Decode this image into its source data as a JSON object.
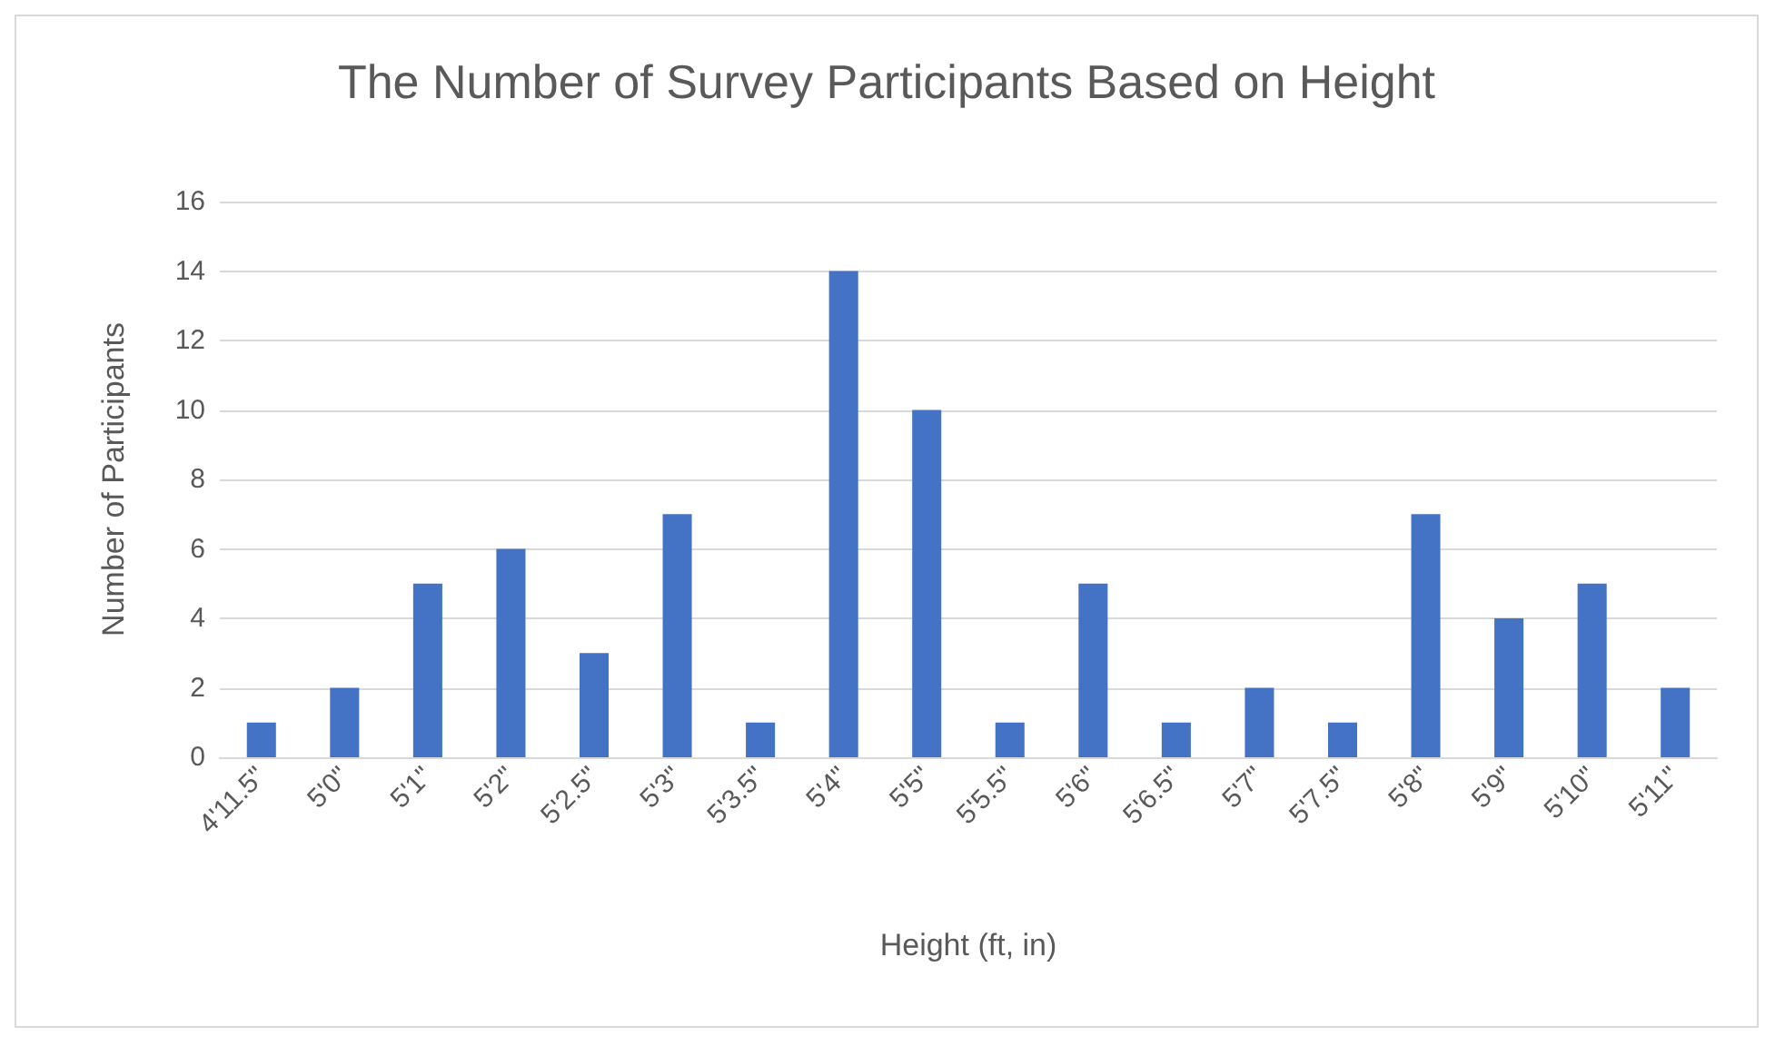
{
  "chart_data": {
    "type": "bar",
    "title": "The Number of Survey Participants Based on Height",
    "xlabel": "Height (ft, in)",
    "ylabel": "Number of Participants",
    "categories": [
      "4'11.5\"",
      "5'0\"",
      "5'1\"",
      "5'2\"",
      "5'2.5\"",
      "5'3\"",
      "5'3.5\"",
      "5'4\"",
      "5'5\"",
      "5'5.5\"",
      "5'6\"",
      "5'6.5\"",
      "5'7\"",
      "5'7.5\"",
      "5'8\"",
      "5'9\"",
      "5'10\"",
      "5'11\""
    ],
    "values": [
      1,
      2,
      5,
      6,
      3,
      7,
      1,
      14,
      10,
      1,
      5,
      1,
      2,
      1,
      7,
      4,
      5,
      2
    ],
    "color": "#4472c4",
    "ylim": [
      0,
      16
    ],
    "yticks": [
      0,
      2,
      4,
      6,
      8,
      10,
      12,
      14,
      16
    ],
    "grid": "y"
  }
}
